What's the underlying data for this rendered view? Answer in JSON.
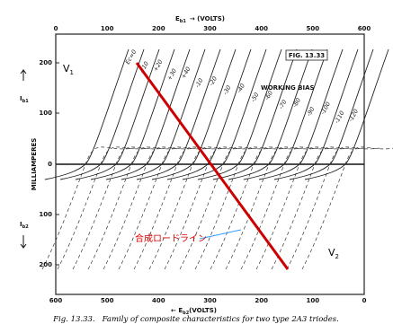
{
  "figure": {
    "fig_box": "FIG. 13.33",
    "working_bias": "WORKING BIAS",
    "v1": "V",
    "v1_sub": "1",
    "v2": "V",
    "v2_sub": "2",
    "top_axis": {
      "symbol": "E",
      "subscript": "b1",
      "unit": "(VOLTS)",
      "ticks": [
        "0",
        "100",
        "200",
        "300",
        "400",
        "500",
        "600"
      ]
    },
    "bottom_axis": {
      "symbol": "E",
      "subscript": "b2",
      "unit": "(VOLTS)",
      "ticks": [
        "600",
        "500",
        "400",
        "300",
        "200",
        "100",
        "0"
      ]
    },
    "left_axis": {
      "upper_symbol": "I",
      "upper_subscript": "b1",
      "unit": "MILLIAMPERES",
      "lower_symbol": "I",
      "lower_subscript": "b2",
      "ticks": [
        "200",
        "100",
        "0",
        "100",
        "200"
      ]
    },
    "curve_labels": [
      "Ec=0",
      "+10",
      "+20",
      "+30",
      "+40",
      "-10",
      "-20",
      "-30",
      "-40",
      "-50",
      "-60",
      "-70",
      "-80",
      "-90",
      "-100",
      "-110",
      "-120"
    ],
    "annotation": "合成ロードライン",
    "caption": {
      "number": "Fig. 13.33.",
      "text": "Family of composite characteristics for two type 2A3 triodes."
    }
  }
}
